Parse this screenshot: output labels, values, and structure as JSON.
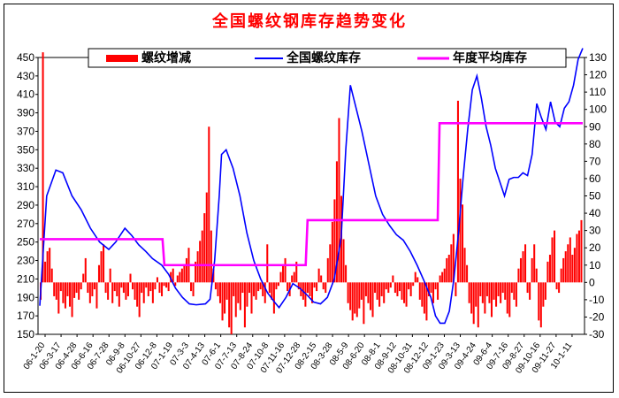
{
  "chart_data": {
    "type": "bar+line",
    "title": "全国螺纹钢库存趋势变化",
    "legend": {
      "placement": "top",
      "entries": [
        {
          "name": "螺纹增减",
          "kind": "bar",
          "color": "#ff0000"
        },
        {
          "name": "全国螺纹库存",
          "kind": "line",
          "color": "#0000ff"
        },
        {
          "name": "年度平均库存",
          "kind": "line",
          "color": "#ff00ff"
        }
      ]
    },
    "left_axis": {
      "min": 150,
      "max": 450,
      "step": 20,
      "ticks": [
        150,
        170,
        190,
        210,
        230,
        250,
        270,
        290,
        310,
        330,
        350,
        370,
        390,
        410,
        430,
        450
      ]
    },
    "right_axis": {
      "min": -30,
      "max": 130,
      "step": 10,
      "ticks": [
        -30,
        -20,
        -10,
        0,
        10,
        20,
        30,
        40,
        50,
        60,
        70,
        80,
        90,
        100,
        110,
        120,
        130
      ]
    },
    "x_tick_labels": [
      "06-1-20",
      "06-3-17",
      "06-4-28",
      "06-6-16",
      "06-7-28",
      "06-9-8",
      "06-10-27",
      "06-12-8",
      "07-1-19",
      "07-3-3",
      "07-4-13",
      "07-6-1",
      "07-7-13",
      "07-8-24",
      "07-10-8",
      "07-11-16",
      "07-12-28",
      "08-2-15",
      "08-3-28",
      "08-5-9",
      "08-6-20",
      "08-8-1",
      "08-9-12",
      "08-10-31",
      "08-12-12",
      "09-1-23",
      "09-3-13",
      "09-4-24",
      "09-6-4",
      "09-7-16",
      "09-8-27",
      "09-10-16",
      "09-11-27",
      "10-1-11"
    ],
    "x_positions": 200,
    "series": [
      {
        "name": "全国螺纹库存",
        "axis": "left",
        "points": [
          [
            0,
            181
          ],
          [
            3,
            300
          ],
          [
            7,
            328
          ],
          [
            10,
            325
          ],
          [
            14,
            300
          ],
          [
            18,
            285
          ],
          [
            22,
            265
          ],
          [
            26,
            250
          ],
          [
            30,
            242
          ],
          [
            33,
            250
          ],
          [
            37,
            265
          ],
          [
            40,
            257
          ],
          [
            43,
            247
          ],
          [
            46,
            240
          ],
          [
            49,
            232
          ],
          [
            53,
            225
          ],
          [
            56,
            215
          ],
          [
            59,
            200
          ],
          [
            62,
            190
          ],
          [
            65,
            183
          ],
          [
            68,
            182
          ],
          [
            72,
            183
          ],
          [
            74,
            188
          ],
          [
            76,
            230
          ],
          [
            78,
            300
          ],
          [
            79,
            345
          ],
          [
            81,
            350
          ],
          [
            84,
            330
          ],
          [
            87,
            300
          ],
          [
            90,
            260
          ],
          [
            93,
            230
          ],
          [
            96,
            210
          ],
          [
            99,
            195
          ],
          [
            102,
            185
          ],
          [
            104,
            179
          ],
          [
            107,
            190
          ],
          [
            110,
            205
          ],
          [
            113,
            200
          ],
          [
            116,
            193
          ],
          [
            119,
            185
          ],
          [
            122,
            183
          ],
          [
            125,
            190
          ],
          [
            128,
            210
          ],
          [
            131,
            255
          ],
          [
            133,
            350
          ],
          [
            135,
            420
          ],
          [
            137,
            400
          ],
          [
            140,
            370
          ],
          [
            143,
            335
          ],
          [
            146,
            300
          ],
          [
            149,
            280
          ],
          [
            152,
            268
          ],
          [
            155,
            258
          ],
          [
            158,
            252
          ],
          [
            161,
            240
          ],
          [
            164,
            225
          ],
          [
            167,
            208
          ],
          [
            170,
            190
          ],
          [
            172,
            170
          ],
          [
            174,
            162
          ],
          [
            176,
            162
          ],
          [
            178,
            175
          ],
          [
            180,
            210
          ],
          [
            182,
            260
          ],
          [
            184,
            320
          ],
          [
            186,
            372
          ],
          [
            188,
            415
          ],
          [
            190,
            430
          ],
          [
            192,
            405
          ],
          [
            194,
            375
          ],
          [
            196,
            355
          ],
          [
            198,
            330
          ],
          [
            200,
            315
          ],
          [
            202,
            300
          ],
          [
            204,
            318
          ],
          [
            206,
            320
          ],
          [
            208,
            320
          ],
          [
            210,
            325
          ],
          [
            212,
            322
          ],
          [
            214,
            345
          ],
          [
            216,
            400
          ],
          [
            218,
            385
          ],
          [
            220,
            372
          ],
          [
            222,
            402
          ],
          [
            224,
            380
          ],
          [
            226,
            375
          ],
          [
            228,
            395
          ],
          [
            230,
            402
          ],
          [
            232,
            420
          ],
          [
            234,
            448
          ],
          [
            236,
            460
          ]
        ]
      },
      {
        "name": "年度平均库存",
        "axis": "right",
        "points": [
          [
            0,
            25
          ],
          [
            66,
            25
          ],
          [
            67,
            10
          ],
          [
            143,
            10
          ],
          [
            144,
            36
          ],
          [
            214,
            36
          ],
          [
            215,
            92
          ],
          [
            292,
            92
          ]
        ]
      },
      {
        "name": "螺纹增减",
        "axis": "right",
        "seed_note": "",
        "values": [
          -10,
          133,
          12,
          18,
          20,
          8,
          -8,
          -10,
          -18,
          -5,
          -12,
          -15,
          -8,
          -14,
          -20,
          -9,
          -6,
          -10,
          -4,
          5,
          14,
          -6,
          -12,
          -8,
          -4,
          -15,
          10,
          18,
          22,
          -6,
          -10,
          8,
          -12,
          -5,
          -8,
          -14,
          -3,
          -6,
          -10,
          -8,
          5,
          -4,
          -10,
          -14,
          -20,
          -6,
          -12,
          -3,
          -8,
          -5,
          -12,
          -4,
          3,
          -6,
          -8,
          -2,
          -3,
          -5,
          6,
          8,
          -2,
          4,
          6,
          8,
          10,
          14,
          20,
          -5,
          -8,
          12,
          18,
          24,
          30,
          40,
          52,
          90,
          30,
          8,
          -4,
          -8,
          -12,
          -22,
          -18,
          -10,
          -26,
          -30,
          -8,
          -20,
          -12,
          -16,
          -6,
          -26,
          -14,
          -6,
          -18,
          -8,
          -10,
          -5,
          -4,
          -8,
          -12,
          22,
          -6,
          -10,
          -18,
          -4,
          -2,
          6,
          10,
          14,
          -5,
          -8,
          4,
          6,
          12,
          -4,
          -8,
          -10,
          -14,
          -6,
          -8,
          -12,
          -3,
          -5,
          8,
          4,
          -4,
          -6,
          14,
          22,
          35,
          48,
          70,
          95,
          50,
          25,
          10,
          -12,
          -16,
          -22,
          -18,
          -20,
          -15,
          -10,
          -24,
          -8,
          -12,
          -16,
          -20,
          -6,
          -10,
          -14,
          -8,
          -12,
          -4,
          -6,
          -3,
          4,
          -6,
          -8,
          -5,
          -10,
          -12,
          -14,
          -4,
          -8,
          -2,
          6,
          3,
          -10,
          -14,
          -18,
          -22,
          -8,
          -6,
          -12,
          -4,
          -10,
          4,
          6,
          8,
          14,
          16,
          22,
          28,
          -8,
          105,
          60,
          45,
          20,
          10,
          -12,
          -18,
          -24,
          -14,
          -26,
          -8,
          -12,
          -18,
          -8,
          -12,
          -20,
          -10,
          -14,
          -8,
          -12,
          -6,
          -10,
          -18,
          -20,
          -6,
          -10,
          -14,
          8,
          14,
          18,
          22,
          -6,
          -10,
          14,
          22,
          8,
          -22,
          -26,
          -14,
          -10,
          12,
          16,
          26,
          30,
          -4,
          -6,
          8,
          14,
          18,
          22,
          26,
          16,
          20,
          28,
          30,
          36
        ]
      }
    ]
  }
}
